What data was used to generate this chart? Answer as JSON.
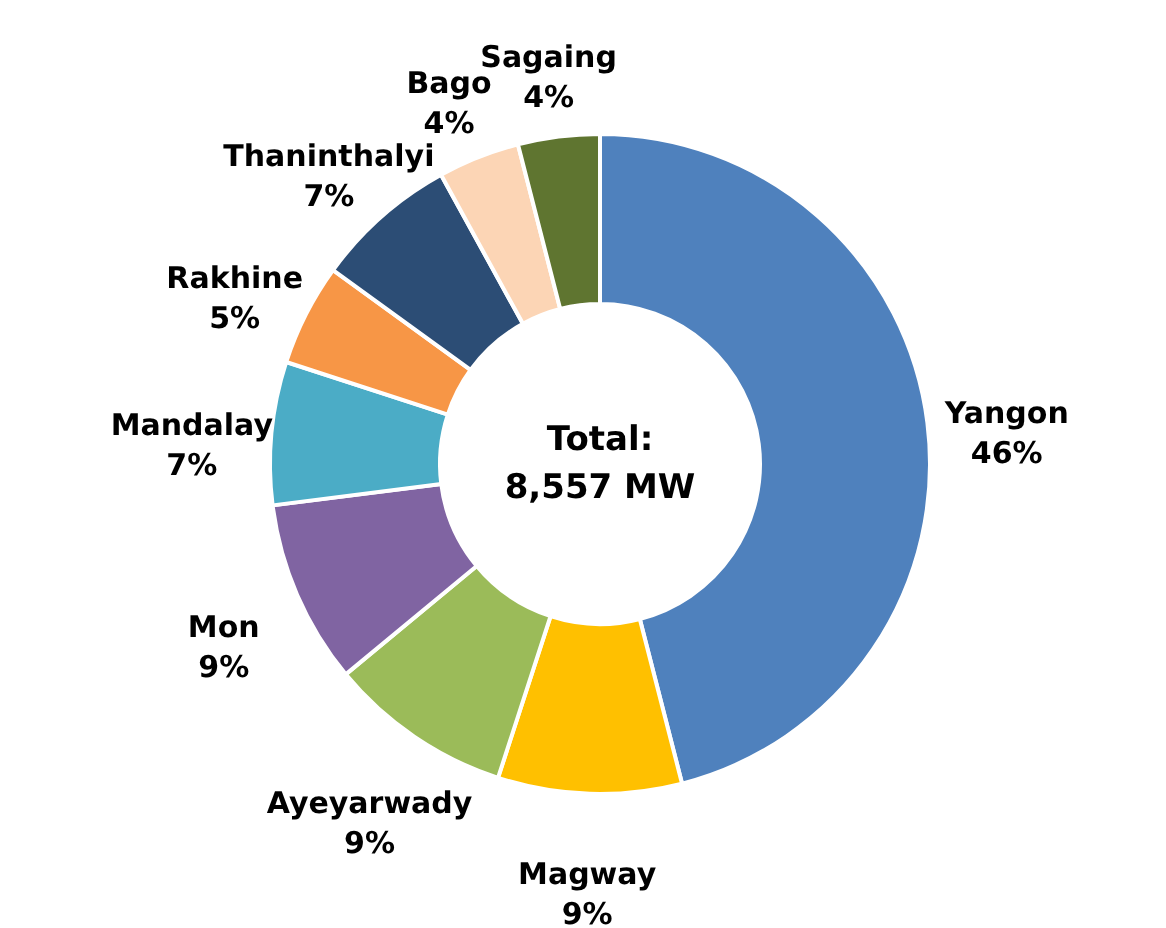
{
  "chart_data": {
    "type": "donut",
    "categories": [
      "Yangon",
      "Magway",
      "Ayeyarwady",
      "Mon",
      "Mandalay",
      "Rakhine",
      "Thaninthalyi",
      "Bago",
      "Sagaing"
    ],
    "values": [
      46,
      9,
      9,
      9,
      7,
      5,
      7,
      4,
      4
    ],
    "value_labels": [
      "46%",
      "9%",
      "9%",
      "9%",
      "7%",
      "5%",
      "7%",
      "4%",
      "4%"
    ],
    "colors": [
      "#4f81bd",
      "#ffc000",
      "#9bbb59",
      "#8064a2",
      "#4bacc6",
      "#f79646",
      "#2c4d75",
      "#fcd5b5",
      "#5f7530"
    ],
    "annotations": [
      "Total:",
      "8,557 MW"
    ]
  }
}
